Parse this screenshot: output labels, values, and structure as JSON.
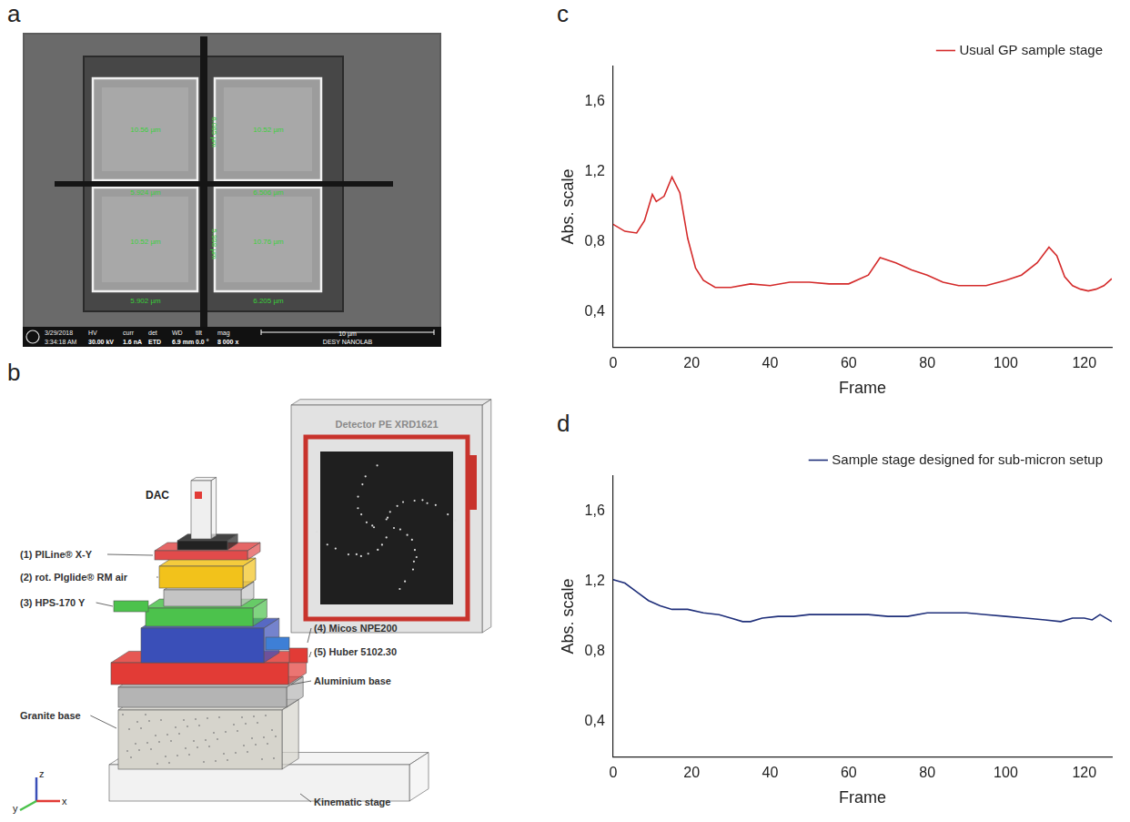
{
  "figure": {
    "panel_a": {
      "letter": "a",
      "measurements": [
        "10.56 µm",
        "10.52 µm",
        "10.52 µm",
        "10.76 µm",
        "5.924 µm",
        "6.506 µm",
        "5.902 µm",
        "6.205 µm",
        "6.065 µm",
        "5.998 µm"
      ],
      "info_bar": {
        "date": "3/29/2018",
        "time": "3:34:18 AM",
        "fields": [
          {
            "name": "HV",
            "value": "30.00 kV"
          },
          {
            "name": "curr",
            "value": "1.6 nA"
          },
          {
            "name": "det",
            "value": "ETD"
          },
          {
            "name": "WD",
            "value": "6.9 mm"
          },
          {
            "name": "tilt",
            "value": "0.0 °"
          },
          {
            "name": "mag",
            "value": "8 000 x"
          }
        ],
        "scale_bar": "10 µm",
        "lab": "DESY NANOLAB"
      }
    },
    "panel_b": {
      "letter": "b",
      "detector": "Detector PE XRD1621",
      "cell": "DAC",
      "labels": [
        "(1) PILine® X-Y",
        "(2) rot. PIglide® RM air",
        "(3) HPS-170 Y",
        "(4) Micos NPE200",
        "(5) Huber 5102.30",
        "Aluminium base",
        "Granite base",
        "Kinematic stage"
      ],
      "axes": [
        "z",
        "y",
        "x"
      ]
    }
  },
  "chart_data": [
    {
      "panel": "c",
      "type": "line",
      "x_label": "Frame",
      "y_label": "Abs. scale",
      "xlim": [
        0,
        127
      ],
      "xticks": [
        0,
        20,
        40,
        60,
        80,
        100,
        120
      ],
      "ylim": [
        0.2,
        1.8
      ],
      "yticks": [
        {
          "value": 0.4,
          "label": "0,4"
        },
        {
          "value": 0.8,
          "label": "0,8"
        },
        {
          "value": 1.2,
          "label": "1,2"
        },
        {
          "value": 1.6,
          "label": "1,6"
        }
      ],
      "grid": false,
      "legend": "upper right",
      "x": [
        0,
        3,
        6,
        8,
        10,
        11,
        13,
        15,
        17,
        19,
        21,
        23,
        26,
        30,
        35,
        40,
        45,
        50,
        55,
        60,
        65,
        68,
        72,
        76,
        80,
        84,
        88,
        95,
        100,
        104,
        108,
        111,
        113,
        115,
        117,
        119,
        121,
        123,
        125,
        127
      ],
      "series": [
        {
          "name": "Usual GP sample stage",
          "color": "#d42a2a",
          "values": [
            0.9,
            0.86,
            0.85,
            0.92,
            1.07,
            1.03,
            1.06,
            1.17,
            1.08,
            0.82,
            0.65,
            0.58,
            0.54,
            0.54,
            0.56,
            0.55,
            0.57,
            0.57,
            0.56,
            0.56,
            0.61,
            0.71,
            0.68,
            0.64,
            0.61,
            0.57,
            0.55,
            0.55,
            0.58,
            0.61,
            0.68,
            0.77,
            0.72,
            0.6,
            0.55,
            0.53,
            0.52,
            0.53,
            0.55,
            0.59
          ]
        }
      ]
    },
    {
      "panel": "d",
      "type": "line",
      "x_label": "Frame",
      "y_label": "Abs. scale",
      "xlim": [
        0,
        127
      ],
      "xticks": [
        0,
        20,
        40,
        60,
        80,
        100,
        120
      ],
      "ylim": [
        0.2,
        1.8
      ],
      "yticks": [
        {
          "value": 0.4,
          "label": "0,4"
        },
        {
          "value": 0.8,
          "label": "0,8"
        },
        {
          "value": 1.2,
          "label": "1,2"
        },
        {
          "value": 1.6,
          "label": "1,6"
        }
      ],
      "grid": false,
      "legend": "upper right",
      "x": [
        0,
        3,
        6,
        9,
        12,
        15,
        19,
        23,
        27,
        30,
        33,
        35,
        38,
        42,
        46,
        50,
        55,
        60,
        65,
        70,
        75,
        80,
        85,
        90,
        95,
        100,
        105,
        110,
        114,
        117,
        120,
        122,
        124,
        127
      ],
      "series": [
        {
          "name": "Sample stage designed for sub-micron setup",
          "color": "#1f2f7a",
          "values": [
            1.21,
            1.19,
            1.14,
            1.09,
            1.06,
            1.04,
            1.04,
            1.02,
            1.01,
            0.99,
            0.97,
            0.97,
            0.99,
            1.0,
            1.0,
            1.01,
            1.01,
            1.01,
            1.01,
            1.0,
            1.0,
            1.02,
            1.02,
            1.02,
            1.01,
            1.0,
            0.99,
            0.98,
            0.97,
            0.99,
            0.99,
            0.98,
            1.01,
            0.97
          ]
        }
      ]
    }
  ]
}
